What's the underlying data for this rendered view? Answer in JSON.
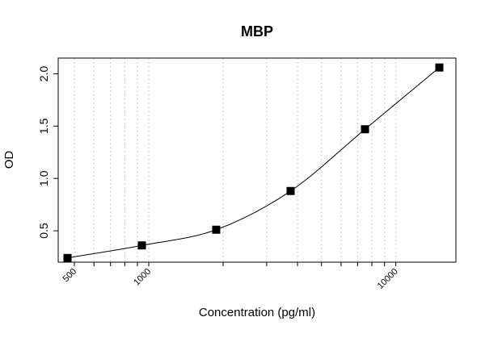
{
  "chart_data": {
    "type": "scatter",
    "title": "MBP",
    "xlabel": "Concentration (pg/ml)",
    "ylabel": "OD",
    "x_scale": "log",
    "xlim": [
      430,
      17500
    ],
    "ylim": [
      0.2,
      2.15
    ],
    "x_ticks": [
      500,
      1000,
      10000
    ],
    "x_tick_labels": [
      "500",
      "1000",
      "10000"
    ],
    "y_ticks": [
      0.5,
      1.0,
      1.5,
      2.0
    ],
    "y_tick_labels": [
      "0.5",
      "1.0",
      "1.5",
      "2.0"
    ],
    "grid": "vertical-dotted",
    "x_grid": [
      500,
      600,
      700,
      800,
      900,
      1000,
      2000,
      3000,
      4000,
      5000,
      6000,
      7000,
      8000,
      9000,
      10000
    ],
    "series": [
      {
        "marker": "square",
        "x": [
          469,
          938,
          1875,
          3750,
          7500,
          15000
        ],
        "y": [
          0.24,
          0.36,
          0.51,
          0.88,
          1.47,
          2.06
        ]
      }
    ]
  }
}
